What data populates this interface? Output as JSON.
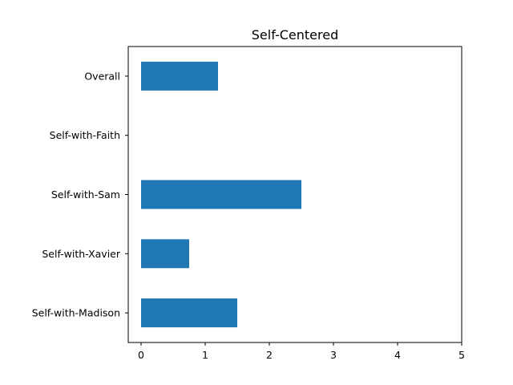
{
  "chart_data": {
    "type": "bar",
    "orientation": "horizontal",
    "title": "Self-Centered",
    "xlabel": "",
    "ylabel": "",
    "categories": [
      "Overall",
      "Self-with-Faith",
      "Self-with-Sam",
      "Self-with-Xavier",
      "Self-with-Madison"
    ],
    "values": [
      1.2,
      0,
      2.5,
      0.75,
      1.5
    ],
    "xlim": [
      -0.2,
      5
    ],
    "xticks": [
      "0",
      "1",
      "2",
      "3",
      "4",
      "5"
    ],
    "bar_color": "#1f77b4",
    "grid": false,
    "legend": "none"
  }
}
